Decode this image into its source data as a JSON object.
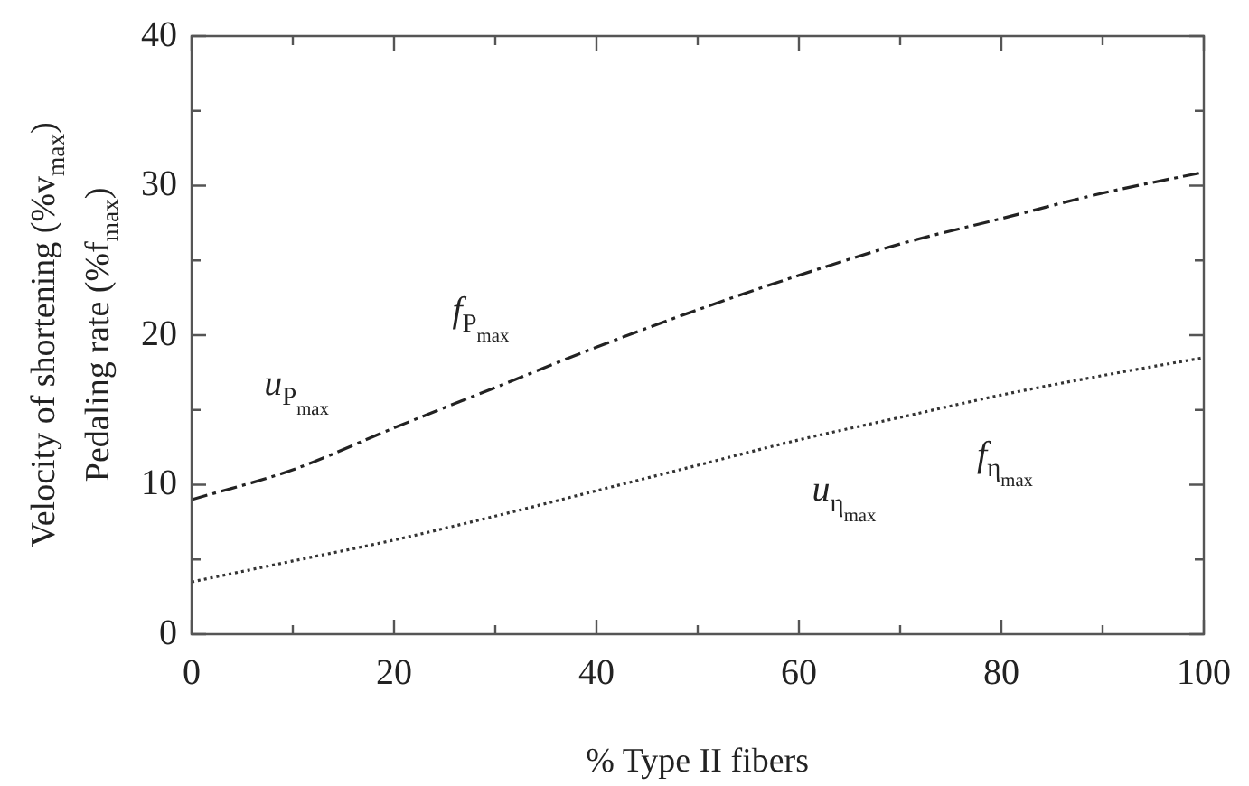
{
  "chart_data": {
    "type": "line",
    "xlabel": "% Type II fibers",
    "ylabel": "Velocity of shortening (%v$_{max}$)\nPedaling rate (%f$_{max}$)",
    "x": [
      0,
      10,
      20,
      30,
      40,
      50,
      60,
      70,
      80,
      90,
      100
    ],
    "series": [
      {
        "color": "#222222",
        "line_style": "dashed",
        "values": [
          9,
          11,
          13.8,
          16.5,
          19.2,
          21.7,
          24,
          26.1,
          27.8,
          29.5,
          30.9
        ]
      },
      {
        "color": "#333333",
        "line_style": "dotted",
        "values": [
          3.5,
          4.9,
          6.3,
          7.9,
          9.6,
          11.3,
          13,
          14.5,
          16,
          17.3,
          18.5
        ]
      }
    ],
    "xlim": [
      0,
      100
    ],
    "xticks": [
      0,
      {
        "value": 10,
        "label": null
      },
      20,
      {
        "value": 30,
        "label": null
      },
      40,
      {
        "value": 50,
        "label": null
      },
      60,
      {
        "value": 70,
        "label": null
      },
      80,
      {
        "value": 90,
        "label": null
      },
      100
    ],
    "ylim": [
      0,
      40
    ],
    "yticks": [
      0,
      {
        "value": 5,
        "label": null
      },
      10,
      {
        "value": 15,
        "label": null
      },
      20,
      {
        "value": 25,
        "label": null
      },
      30,
      {
        "value": 35,
        "label": null
      },
      40
    ],
    "grid": false,
    "legend": false,
    "marker": "none",
    "annotations": [
      {
        "text": "u$_{P}$$_{max}$",
        "x": 15,
        "y": 12.4
      },
      {
        "text": "f$_{P}$$_{max}$",
        "x": 33,
        "y": 17.3
      },
      {
        "text": "u$_{η}$$_{max}$",
        "x": 65,
        "y": 13.75
      },
      {
        "text": "f$_{η}$$_{max}$",
        "x": 81,
        "y": 16.1
      }
    ]
  }
}
